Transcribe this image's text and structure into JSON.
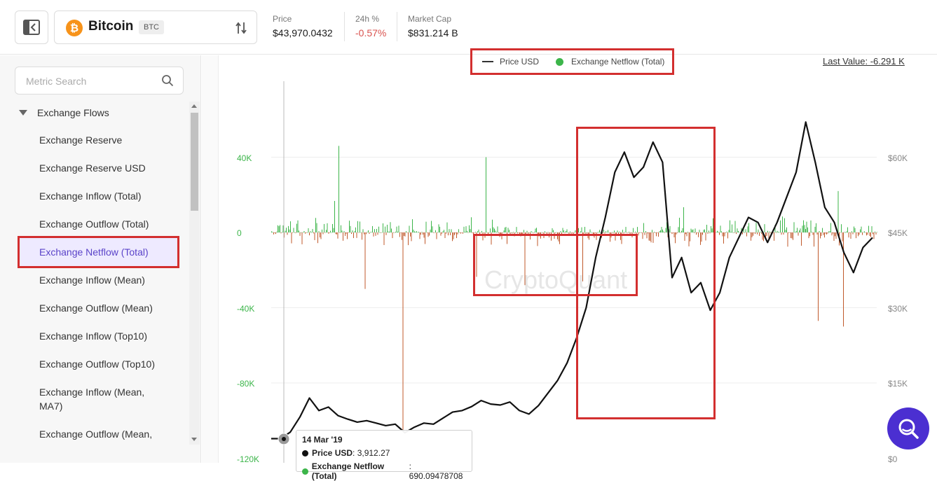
{
  "header": {
    "asset_name": "Bitcoin",
    "asset_ticker": "BTC",
    "asset_logo_glyph": "₿",
    "stats": [
      {
        "label": "Price",
        "value": "$43,970.0432"
      },
      {
        "label": "24h %",
        "value": "-0.57%"
      },
      {
        "label": "Market Cap",
        "value": "$831.214 B"
      }
    ]
  },
  "sidebar": {
    "search_placeholder": "Metric Search",
    "group_title": "Exchange Flows",
    "items": [
      {
        "label": "Exchange Reserve",
        "active": false
      },
      {
        "label": "Exchange Reserve USD",
        "active": false
      },
      {
        "label": "Exchange Inflow (Total)",
        "active": false
      },
      {
        "label": "Exchange Outflow (Total)",
        "active": false
      },
      {
        "label": "Exchange Netflow (Total)",
        "active": true
      },
      {
        "label": "Exchange Inflow (Mean)",
        "active": false
      },
      {
        "label": "Exchange Outflow (Mean)",
        "active": false
      },
      {
        "label": "Exchange Inflow (Top10)",
        "active": false
      },
      {
        "label": "Exchange Outflow (Top10)",
        "active": false
      },
      {
        "label": "Exchange Inflow (Mean, MA7)",
        "active": false
      },
      {
        "label": "Exchange Outflow (Mean,",
        "active": false
      }
    ]
  },
  "chart": {
    "legend": {
      "series_1": "Price USD",
      "series_2": "Exchange Netflow (Total)"
    },
    "last_value": "Last Value: -6.291 K",
    "watermark": "CryptoQuant",
    "left_axis_ticks": [
      "40K",
      "0",
      "-40K",
      "-80K",
      "-120K"
    ],
    "right_axis_ticks": [
      "$60K",
      "$45K",
      "$30K",
      "$15K",
      "$0"
    ],
    "tooltip": {
      "date": "14 Mar '19",
      "price_label": "Price USD",
      "price_value": ": 3,912.27",
      "netflow_label": "Exchange Netflow (Total)",
      "netflow_value": ": 690.09478708"
    },
    "colors": {
      "positive": "#3cb54a",
      "negative": "#c0592b",
      "price_line": "#111111",
      "highlight": "#d32f2f"
    }
  },
  "chart_data": {
    "type": "bar",
    "series": [
      {
        "name": "Exchange Netflow (Total)",
        "axis": "left",
        "type": "bar"
      },
      {
        "name": "Price USD",
        "axis": "right",
        "type": "line",
        "values": [
          3900,
          3912,
          5200,
          8200,
          12000,
          9500,
          10200,
          8500,
          7800,
          7200,
          7500,
          7000,
          6500,
          6800,
          5100,
          6200,
          7000,
          6800,
          8000,
          9200,
          9500,
          10300,
          11500,
          10800,
          10600,
          11200,
          9500,
          8800,
          10500,
          13000,
          15500,
          19000,
          24000,
          30000,
          40000,
          48000,
          57000,
          61000,
          56000,
          58000,
          63000,
          59000,
          36000,
          40000,
          33000,
          35000,
          29500,
          33000,
          40000,
          44000,
          48000,
          47000,
          43000,
          47000,
          52000,
          57000,
          67000,
          59000,
          50000,
          47000,
          41000,
          37000,
          42000,
          43970
        ]
      }
    ],
    "y_left": {
      "ticks": [
        40000,
        0,
        -40000,
        -80000,
        -120000
      ]
    },
    "y_right": {
      "ticks": [
        60000,
        45000,
        30000,
        15000,
        0
      ]
    }
  }
}
